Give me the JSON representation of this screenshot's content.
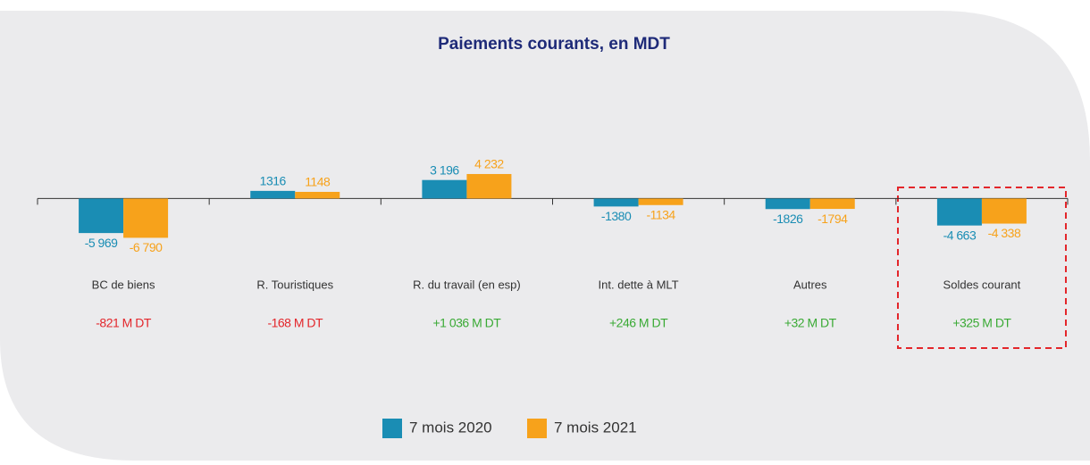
{
  "chart_data": {
    "type": "bar",
    "title": "Paiements courants, en MDT",
    "categories": [
      "BC de biens",
      "R. Touristiques",
      "R. du travail (en esp)",
      "Int. dette à MLT",
      "Autres",
      "Soldes courant"
    ],
    "series": [
      {
        "name": "7 mois 2020",
        "color": "#1a8db4",
        "values": [
          -5969,
          1316,
          3196,
          -1380,
          -1826,
          -4663
        ],
        "value_labels": [
          "-5 969",
          "1316",
          "3 196",
          "-1380",
          "-1826",
          "-4 663"
        ]
      },
      {
        "name": "7 mois 2021",
        "color": "#f7a21b",
        "values": [
          -6790,
          1148,
          4232,
          -1134,
          -1794,
          -4338
        ],
        "value_labels": [
          "-6 790",
          "1148",
          "4 232",
          "-1134",
          "-1794",
          "-4 338"
        ]
      }
    ],
    "annotations": [
      {
        "text": "-821 M DT",
        "color": "#e3262b"
      },
      {
        "text": "-168 M DT",
        "color": "#e3262b"
      },
      {
        "text": "+1 036 M DT",
        "color": "#3aaa35"
      },
      {
        "text": "+246 M DT",
        "color": "#3aaa35"
      },
      {
        "text": "+32 M DT",
        "color": "#3aaa35"
      },
      {
        "text": "+325 M DT",
        "color": "#3aaa35"
      }
    ],
    "ylim": [
      -7000,
      5000
    ]
  }
}
